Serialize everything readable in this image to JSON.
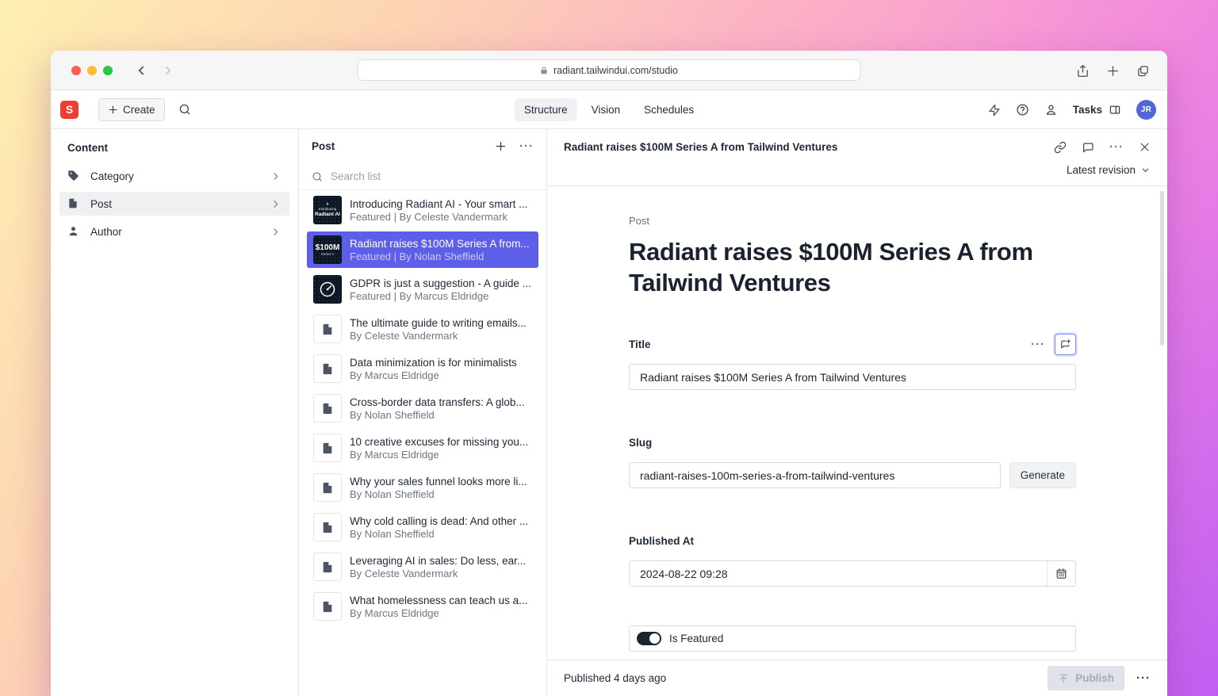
{
  "browser": {
    "url": "radiant.tailwindui.com/studio"
  },
  "toolbar": {
    "logo_letter": "S",
    "create_label": "Create",
    "tabs": [
      {
        "label": "Structure",
        "active": true
      },
      {
        "label": "Vision",
        "active": false
      },
      {
        "label": "Schedules",
        "active": false
      }
    ],
    "tasks_label": "Tasks",
    "avatar_initials": "JR"
  },
  "sidebar": {
    "heading": "Content",
    "items": [
      {
        "label": "Category",
        "icon": "tag",
        "selected": false
      },
      {
        "label": "Post",
        "icon": "file",
        "selected": true
      },
      {
        "label": "Author",
        "icon": "user",
        "selected": false
      }
    ]
  },
  "list_pane": {
    "title": "Post",
    "search_placeholder": "Search list",
    "items": [
      {
        "title": "Introducing Radiant AI - Your smart ...",
        "subtitle": "Featured | By Celeste Vandermark",
        "thumb": "radiant-ai",
        "thumb_lines": [
          "Introducing",
          "Radiant AI"
        ],
        "selected": false
      },
      {
        "title": "Radiant raises $100M Series A from...",
        "subtitle": "Featured | By Nolan Sheffield",
        "thumb": "100m",
        "thumb_lines": [
          "$100M",
          "Series A"
        ],
        "selected": true
      },
      {
        "title": "GDPR is just a suggestion - A guide ...",
        "subtitle": "Featured | By Marcus Eldridge",
        "thumb": "gauge",
        "thumb_lines": [],
        "selected": false
      },
      {
        "title": "The ultimate guide to writing emails...",
        "subtitle": "By Celeste Vandermark",
        "thumb": "doc",
        "thumb_lines": [],
        "selected": false
      },
      {
        "title": "Data minimization is for minimalists",
        "subtitle": "By Marcus Eldridge",
        "thumb": "doc",
        "thumb_lines": [],
        "selected": false
      },
      {
        "title": "Cross-border data transfers: A glob...",
        "subtitle": "By Nolan Sheffield",
        "thumb": "doc",
        "thumb_lines": [],
        "selected": false
      },
      {
        "title": "10 creative excuses for missing you...",
        "subtitle": "By Marcus Eldridge",
        "thumb": "doc",
        "thumb_lines": [],
        "selected": false
      },
      {
        "title": "Why your sales funnel looks more li...",
        "subtitle": "By Nolan Sheffield",
        "thumb": "doc",
        "thumb_lines": [],
        "selected": false
      },
      {
        "title": "Why cold calling is dead: And other ...",
        "subtitle": "By Nolan Sheffield",
        "thumb": "doc",
        "thumb_lines": [],
        "selected": false
      },
      {
        "title": "Leveraging AI in sales: Do less, ear...",
        "subtitle": "By Celeste Vandermark",
        "thumb": "doc",
        "thumb_lines": [],
        "selected": false
      },
      {
        "title": "What homelessness can teach us a...",
        "subtitle": "By Marcus Eldridge",
        "thumb": "doc",
        "thumb_lines": [],
        "selected": false
      }
    ]
  },
  "doc": {
    "header_title": "Radiant raises $100M Series A from Tailwind Ventures",
    "revision_label": "Latest revision",
    "type_label": "Post",
    "heading": "Radiant raises $100M Series A from Tailwind Ventures",
    "fields": {
      "title": {
        "label": "Title",
        "value": "Radiant raises $100M Series A from Tailwind Ventures"
      },
      "slug": {
        "label": "Slug",
        "value": "radiant-raises-100m-series-a-from-tailwind-ventures",
        "button_label": "Generate"
      },
      "published_at": {
        "label": "Published At",
        "value": "2024-08-22 09:28"
      },
      "is_featured": {
        "label": "Is Featured",
        "value": true
      }
    },
    "footer": {
      "status": "Published 4 days ago",
      "publish_label": "Publish"
    }
  },
  "icons": {
    "lock-icon": "padlock",
    "share-icon": "box-arrow-up",
    "new-tab-icon": "plus",
    "tabs-overview-icon": "overlapping-squares",
    "search-icon": "magnifier",
    "lightning-icon": "zap",
    "help-icon": "question-circle",
    "user-icon": "person",
    "panel-icon": "split-rectangle",
    "tag-icon": "tag",
    "file-icon": "document",
    "link-icon": "chain",
    "comment-icon": "speech-bubble",
    "close-icon": "x",
    "calendar-icon": "calendar",
    "publish-icon": "arrow-up-from-line",
    "sparkle": "✦"
  },
  "colors": {
    "accent_selected": "#5d5fe8",
    "logo_red": "#f03e2e",
    "avatar_blue": "#5266d9",
    "thumb_dark": "#0e1726",
    "gradient": [
      "#feefb0",
      "#fba5cc",
      "#c05ef2"
    ]
  }
}
